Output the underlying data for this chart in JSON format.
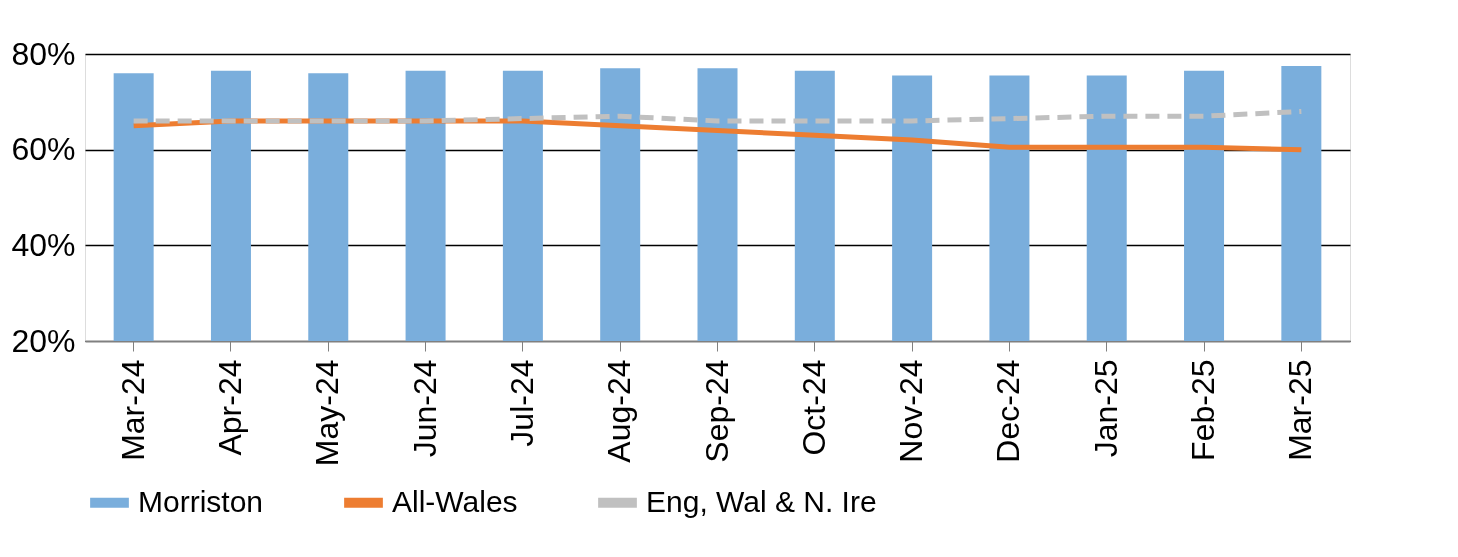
{
  "chart_data": {
    "type": "bar",
    "categories": [
      "Mar-24",
      "Apr-24",
      "May-24",
      "Jun-24",
      "Jul-24",
      "Aug-24",
      "Sep-24",
      "Oct-24",
      "Nov-24",
      "Dec-24",
      "Jan-25",
      "Feb-25",
      "Mar-25"
    ],
    "series": [
      {
        "name": "Morriston",
        "color": "#7aaedc",
        "values": [
          76,
          76.5,
          76,
          76.5,
          76.5,
          77,
          77,
          76.5,
          75.5,
          75.5,
          75.5,
          76.5,
          77.5
        ]
      },
      {
        "name": "All-Wales",
        "type": "line",
        "color": "#ed7d31",
        "line_style": "solid",
        "values": [
          65,
          66,
          66,
          66,
          66,
          65,
          64,
          63,
          62,
          60.5,
          60.5,
          60.5,
          60
        ]
      },
      {
        "name": "Eng, Wal & N. Ire",
        "type": "line",
        "color": "#c0c0c0",
        "line_style": "dashed",
        "values": [
          66,
          66,
          66,
          66,
          66.5,
          67,
          66,
          66,
          66,
          66.5,
          67,
          67,
          68
        ]
      }
    ],
    "ylim": [
      20,
      80
    ],
    "yticks": [
      {
        "value": 20,
        "label": "20%"
      },
      {
        "value": 40,
        "label": "40%"
      },
      {
        "value": 60,
        "label": "60%"
      },
      {
        "value": 80,
        "label": "80%"
      }
    ],
    "grid": "y",
    "legend": "bottom",
    "marker": "none"
  }
}
